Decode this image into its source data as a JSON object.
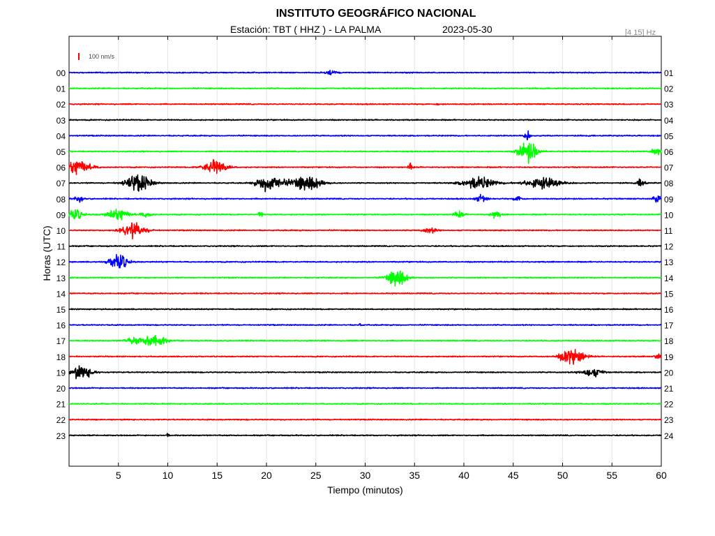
{
  "header": {
    "title": "INSTITUTO GEOGRÁFICO NACIONAL",
    "station": "Estación:  TBT ( HHZ ) - LA PALMA",
    "date": "2023-05-30",
    "band": "[4 15] Hz"
  },
  "chart_data": {
    "type": "line",
    "title": "INSTITUTO GEOGRÁFICO NACIONAL",
    "xlabel": "Tiempo (minutos)",
    "ylabel": "Horas (UTC)",
    "xlim": [
      0,
      60
    ],
    "xticks": [
      5,
      10,
      15,
      20,
      25,
      30,
      35,
      40,
      45,
      50,
      55,
      60
    ],
    "scale_label": "100 nm/s",
    "grid": true,
    "colors": [
      "#0000ff",
      "#00ff00",
      "#ff0000",
      "#000000"
    ],
    "rows": [
      {
        "left": "00",
        "right": "01",
        "events": [
          {
            "t": 26.5,
            "a": 0.35,
            "w": 0.8
          }
        ]
      },
      {
        "left": "01",
        "right": "02",
        "events": []
      },
      {
        "left": "02",
        "right": "03",
        "events": [
          {
            "t": 37.4,
            "a": 0.3,
            "w": 0.2
          }
        ]
      },
      {
        "left": "03",
        "right": "04",
        "events": []
      },
      {
        "left": "04",
        "right": "05",
        "events": [
          {
            "t": 46.4,
            "a": 0.8,
            "w": 0.4
          }
        ]
      },
      {
        "left": "05",
        "right": "06",
        "events": [
          {
            "t": 46.5,
            "a": 1.6,
            "w": 1.3
          },
          {
            "t": 59.5,
            "a": 0.5,
            "w": 0.8
          }
        ]
      },
      {
        "left": "06",
        "right": "07",
        "events": [
          {
            "t": 1.0,
            "a": 1.1,
            "w": 1.8
          },
          {
            "t": 14.8,
            "a": 1.2,
            "w": 1.6
          },
          {
            "t": 34.6,
            "a": 0.6,
            "w": 0.3
          }
        ]
      },
      {
        "left": "07",
        "right": "08",
        "events": [
          {
            "t": 7.0,
            "a": 1.3,
            "w": 1.8
          },
          {
            "t": 20.3,
            "a": 1.5,
            "w": 1.6
          },
          {
            "t": 24.0,
            "a": 1.2,
            "w": 2.2
          },
          {
            "t": 41.5,
            "a": 1.0,
            "w": 2.2
          },
          {
            "t": 48.0,
            "a": 0.9,
            "w": 2.5
          },
          {
            "t": 58.0,
            "a": 0.8,
            "w": 0.5
          }
        ]
      },
      {
        "left": "08",
        "right": "09",
        "events": [
          {
            "t": 1.0,
            "a": 0.5,
            "w": 0.6
          },
          {
            "t": 41.8,
            "a": 0.6,
            "w": 0.8
          },
          {
            "t": 45.5,
            "a": 0.4,
            "w": 0.6
          },
          {
            "t": 59.6,
            "a": 0.6,
            "w": 0.6
          }
        ]
      },
      {
        "left": "09",
        "right": "10",
        "events": [
          {
            "t": 0.6,
            "a": 0.9,
            "w": 1.0
          },
          {
            "t": 5.0,
            "a": 0.8,
            "w": 1.6
          },
          {
            "t": 7.8,
            "a": 0.4,
            "w": 0.8
          },
          {
            "t": 19.4,
            "a": 0.5,
            "w": 0.3
          },
          {
            "t": 39.5,
            "a": 0.5,
            "w": 0.7
          },
          {
            "t": 43.2,
            "a": 0.5,
            "w": 0.7
          }
        ]
      },
      {
        "left": "10",
        "right": "11",
        "events": [
          {
            "t": 6.5,
            "a": 1.1,
            "w": 1.8
          },
          {
            "t": 36.5,
            "a": 0.4,
            "w": 1.0
          }
        ]
      },
      {
        "left": "11",
        "right": "12",
        "events": []
      },
      {
        "left": "12",
        "right": "13",
        "events": [
          {
            "t": 5.0,
            "a": 1.4,
            "w": 1.2
          }
        ]
      },
      {
        "left": "13",
        "right": "14",
        "events": [
          {
            "t": 33.2,
            "a": 1.5,
            "w": 1.3
          }
        ]
      },
      {
        "left": "14",
        "right": "15",
        "events": []
      },
      {
        "left": "15",
        "right": "16",
        "events": []
      },
      {
        "left": "16",
        "right": "17",
        "events": [
          {
            "t": 29.5,
            "a": 0.3,
            "w": 0.2
          }
        ]
      },
      {
        "left": "17",
        "right": "18",
        "events": [
          {
            "t": 6.5,
            "a": 0.5,
            "w": 1.2
          },
          {
            "t": 8.6,
            "a": 1.3,
            "w": 1.4
          }
        ]
      },
      {
        "left": "18",
        "right": "19",
        "events": [
          {
            "t": 51.0,
            "a": 1.4,
            "w": 1.6
          },
          {
            "t": 59.6,
            "a": 0.4,
            "w": 0.5
          }
        ]
      },
      {
        "left": "19",
        "right": "20",
        "events": [
          {
            "t": 1.2,
            "a": 1.0,
            "w": 1.6
          },
          {
            "t": 53.0,
            "a": 0.8,
            "w": 1.4
          }
        ]
      },
      {
        "left": "20",
        "right": "21",
        "events": []
      },
      {
        "left": "21",
        "right": "22",
        "events": []
      },
      {
        "left": "22",
        "right": "23",
        "events": []
      },
      {
        "left": "23",
        "right": "24",
        "events": [
          {
            "t": 10.0,
            "a": 0.3,
            "w": 0.2
          }
        ]
      }
    ]
  }
}
